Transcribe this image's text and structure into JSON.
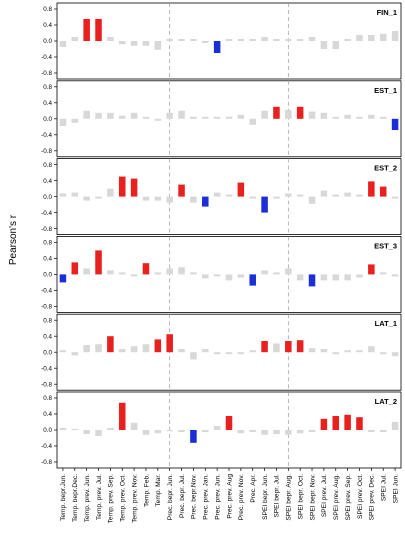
{
  "chart_data": {
    "type": "bar",
    "ylabel": "Pearson's r",
    "ylim": [
      -0.8,
      0.8
    ],
    "yticks": [
      "0.8",
      "0.4",
      "0.0",
      "-0.4",
      "-0.8"
    ],
    "yticks_values": [
      0.8,
      0.4,
      0.0,
      -0.4,
      -0.8
    ],
    "group_separators_after_index": [
      9,
      19
    ],
    "colors": {
      "positive_significant": "#e8201e",
      "negative_significant": "#1a2fd6",
      "non_significant": "#d8d8d8"
    },
    "categories": [
      "Temp. bepr.Jun.",
      "Temp. bepr.Dec.",
      "Temp. prev. Jun.",
      "Temp. prev. Jul.",
      "Temp. prev. Sep.",
      "Temp. prev. Oct.",
      "Temp. prev. Nov.",
      "Temp. Feb.",
      "Temp. Mar.",
      "Prec. bepr. Jun.",
      "Prec. bepr. Jul.",
      "Prec. bepr.Nov.",
      "Prec. prev. Jan.",
      "Prec. prev. Jun.",
      "Prec. prev. Aug",
      "Prec. prev. Nov.",
      "Prec. Apr.",
      "SPEI bepr. Jun.",
      "SPEI bepr. Jul.",
      "SPEI bepr. Aug.",
      "SPEI bepr. Oct.",
      "SPEI bepr. Nov.",
      "SPEI prev. Jul.",
      "SPEI prev. Aug.",
      "SPEI prev. Sep.",
      "SPEI prev. Oct.",
      "SPEI prev. Dec.",
      "SPEI Jul.",
      "SPEI Jun."
    ],
    "panels": [
      {
        "label": "FIN_1",
        "values": [
          -0.15,
          0.1,
          0.55,
          0.55,
          0.1,
          -0.08,
          -0.12,
          -0.12,
          -0.22,
          0.05,
          0.05,
          0.05,
          -0.05,
          -0.3,
          0.05,
          0.05,
          0.05,
          0.1,
          0.05,
          0.05,
          0.05,
          0.1,
          -0.2,
          -0.2,
          0.05,
          0.15,
          0.15,
          0.18,
          0.25
        ],
        "significant": [
          false,
          false,
          true,
          true,
          false,
          false,
          false,
          false,
          false,
          false,
          false,
          false,
          false,
          true,
          false,
          false,
          false,
          false,
          false,
          false,
          false,
          false,
          false,
          false,
          false,
          false,
          false,
          false,
          false
        ]
      },
      {
        "label": "EST_1",
        "values": [
          -0.18,
          -0.1,
          0.2,
          0.15,
          0.15,
          0.08,
          0.15,
          0.05,
          -0.05,
          0.15,
          0.2,
          0.05,
          0.05,
          0.05,
          0.05,
          0.1,
          -0.15,
          0.2,
          0.3,
          0.22,
          0.3,
          0.18,
          0.15,
          0.05,
          0.1,
          0.05,
          0.1,
          0.05,
          -0.28
        ],
        "significant": [
          false,
          false,
          false,
          false,
          false,
          false,
          false,
          false,
          false,
          false,
          false,
          false,
          false,
          false,
          false,
          false,
          false,
          false,
          true,
          false,
          true,
          false,
          false,
          false,
          false,
          false,
          false,
          false,
          true
        ]
      },
      {
        "label": "EST_2",
        "values": [
          0.08,
          0.1,
          -0.1,
          -0.05,
          0.2,
          0.5,
          0.45,
          -0.1,
          -0.1,
          -0.15,
          0.3,
          -0.15,
          -0.25,
          0.1,
          0.05,
          0.35,
          -0.05,
          -0.4,
          -0.05,
          0.08,
          0.05,
          -0.18,
          0.15,
          0.05,
          0.1,
          0.05,
          0.38,
          0.25,
          -0.05
        ],
        "significant": [
          false,
          false,
          false,
          false,
          false,
          true,
          true,
          false,
          false,
          false,
          true,
          false,
          true,
          false,
          false,
          true,
          false,
          true,
          false,
          false,
          false,
          false,
          false,
          false,
          false,
          false,
          true,
          true,
          false
        ]
      },
      {
        "label": "EST_3",
        "values": [
          -0.2,
          0.3,
          0.15,
          0.6,
          0.1,
          0.05,
          -0.05,
          0.28,
          0.05,
          0.15,
          0.18,
          0.05,
          -0.1,
          -0.05,
          -0.15,
          -0.08,
          -0.28,
          0.1,
          0.05,
          0.15,
          -0.15,
          -0.3,
          -0.15,
          -0.15,
          -0.15,
          -0.08,
          0.25,
          0.05,
          -0.05
        ],
        "significant": [
          true,
          true,
          false,
          true,
          false,
          false,
          false,
          true,
          false,
          false,
          false,
          false,
          false,
          false,
          false,
          false,
          true,
          false,
          false,
          false,
          false,
          true,
          false,
          false,
          false,
          false,
          true,
          false,
          false
        ]
      },
      {
        "label": "LAT_1",
        "values": [
          0.05,
          -0.08,
          0.18,
          0.2,
          0.4,
          0.08,
          0.15,
          0.2,
          0.32,
          0.45,
          0.08,
          -0.18,
          0.08,
          -0.05,
          -0.05,
          -0.05,
          0.05,
          0.28,
          0.22,
          0.28,
          0.3,
          0.1,
          0.08,
          -0.05,
          0.05,
          0.05,
          0.15,
          -0.05,
          -0.1
        ],
        "significant": [
          false,
          false,
          false,
          false,
          true,
          false,
          false,
          false,
          true,
          true,
          false,
          false,
          false,
          false,
          false,
          false,
          false,
          true,
          false,
          true,
          true,
          false,
          false,
          false,
          false,
          false,
          false,
          false,
          false
        ]
      },
      {
        "label": "LAT_2",
        "values": [
          0.05,
          0.03,
          -0.1,
          -0.15,
          0.05,
          0.68,
          0.18,
          -0.12,
          -0.08,
          -0.03,
          -0.05,
          -0.32,
          -0.05,
          0.1,
          0.35,
          -0.08,
          -0.05,
          -0.12,
          -0.1,
          -0.12,
          -0.08,
          -0.05,
          0.28,
          0.35,
          0.38,
          0.32,
          -0.05,
          -0.05,
          0.2
        ],
        "significant": [
          false,
          false,
          false,
          false,
          false,
          true,
          false,
          false,
          false,
          false,
          false,
          true,
          false,
          false,
          true,
          false,
          false,
          false,
          false,
          false,
          false,
          false,
          true,
          true,
          true,
          true,
          false,
          false,
          false
        ]
      }
    ]
  }
}
